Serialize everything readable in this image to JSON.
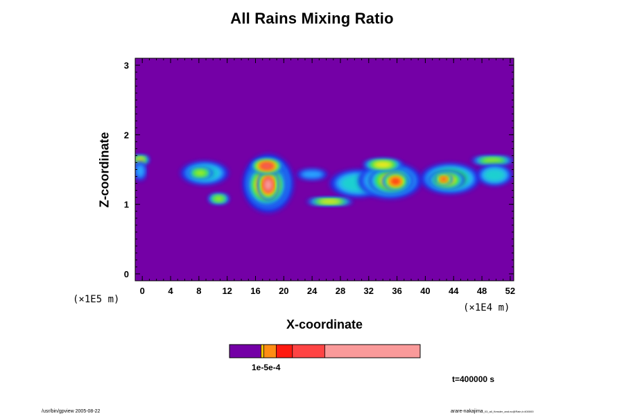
{
  "title": "All Rains Mixing Ratio",
  "chart_data": {
    "type": "heatmap",
    "title": "All Rains Mixing Ratio",
    "xlabel": "X-coordinate",
    "ylabel": "Z-coordinate",
    "x_scale_label": "(×1E4 m)",
    "y_scale_label": "(×1E5 m)",
    "xlim": [
      -1,
      52.5
    ],
    "ylim": [
      -0.1,
      3.1
    ],
    "x_ticks": [
      "0",
      "4",
      "8",
      "12",
      "16",
      "20",
      "24",
      "28",
      "32",
      "36",
      "40",
      "44",
      "48",
      "52"
    ],
    "y_ticks": [
      "0",
      "1",
      "2",
      "3"
    ],
    "grid": false,
    "background_color": "#7400a6",
    "colorscale": [
      "#7400a6",
      "#1a2ee6",
      "#2aa6ff",
      "#1cd0d0",
      "#30e030",
      "#b0ee28",
      "#ffe61e",
      "#ff9a10",
      "#ff3018",
      "#f06868",
      "#f8a0a0"
    ],
    "colorbar_label": "1e-5e-4",
    "colorbar_colors": [
      "#7400a6",
      "#ffc400",
      "#ff8c14",
      "#ff1a10",
      "#ff4444",
      "#fa9a9a"
    ],
    "colorbar_stops": [
      0,
      0.165,
      0.18,
      0.245,
      0.33,
      0.5,
      1.0
    ],
    "cells": [
      {
        "x": -0.3,
        "z": 1.64,
        "rx": 1.3,
        "rz": 0.06,
        "level": 6
      },
      {
        "x": -0.3,
        "z": 1.48,
        "rx": 0.9,
        "rz": 0.14,
        "level": 2
      },
      {
        "x": 8.8,
        "z": 1.45,
        "rx": 3.4,
        "rz": 0.17,
        "level": 3
      },
      {
        "x": 8.2,
        "z": 1.45,
        "rx": 1.8,
        "rz": 0.08,
        "level": 5
      },
      {
        "x": 10.8,
        "z": 1.08,
        "rx": 1.5,
        "rz": 0.07,
        "level": 5
      },
      {
        "x": 17.8,
        "z": 1.3,
        "rx": 3.6,
        "rz": 0.42,
        "level": 4
      },
      {
        "x": 17.6,
        "z": 1.3,
        "rx": 3.0,
        "rz": 0.35,
        "level": 6
      },
      {
        "x": 17.6,
        "z": 1.28,
        "rx": 2.7,
        "rz": 0.3,
        "level": 8
      },
      {
        "x": 17.8,
        "z": 1.28,
        "rx": 1.4,
        "rz": 0.22,
        "level": 10
      },
      {
        "x": 17.6,
        "z": 1.55,
        "rx": 2.2,
        "rz": 0.1,
        "level": 9
      },
      {
        "x": 24.0,
        "z": 1.43,
        "rx": 2.2,
        "rz": 0.08,
        "level": 2
      },
      {
        "x": 26.5,
        "z": 1.04,
        "rx": 3.3,
        "rz": 0.05,
        "level": 6
      },
      {
        "x": 30.5,
        "z": 1.3,
        "rx": 4.0,
        "rz": 0.2,
        "level": 3
      },
      {
        "x": 35.0,
        "z": 1.34,
        "rx": 4.5,
        "rz": 0.26,
        "level": 4
      },
      {
        "x": 35.2,
        "z": 1.34,
        "rx": 3.2,
        "rz": 0.2,
        "level": 6
      },
      {
        "x": 35.8,
        "z": 1.33,
        "rx": 1.8,
        "rz": 0.12,
        "level": 8
      },
      {
        "x": 34.0,
        "z": 1.57,
        "rx": 2.8,
        "rz": 0.08,
        "level": 6
      },
      {
        "x": 43.5,
        "z": 1.37,
        "rx": 4.2,
        "rz": 0.22,
        "level": 4
      },
      {
        "x": 43.0,
        "z": 1.35,
        "rx": 2.6,
        "rz": 0.13,
        "level": 6
      },
      {
        "x": 42.6,
        "z": 1.36,
        "rx": 1.2,
        "rz": 0.07,
        "level": 8
      },
      {
        "x": 49.5,
        "z": 1.63,
        "rx": 3.0,
        "rz": 0.06,
        "level": 5
      },
      {
        "x": 49.8,
        "z": 1.42,
        "rx": 2.5,
        "rz": 0.15,
        "level": 3
      }
    ]
  },
  "time_label": "t=400000 s",
  "footer_left": "/usr/bin/gpview 2005-08-22",
  "footer_right_main": "arare-nakajima",
  "footer_right_small": "_03_all_Kessler_and.nc@Rain,t=400000"
}
